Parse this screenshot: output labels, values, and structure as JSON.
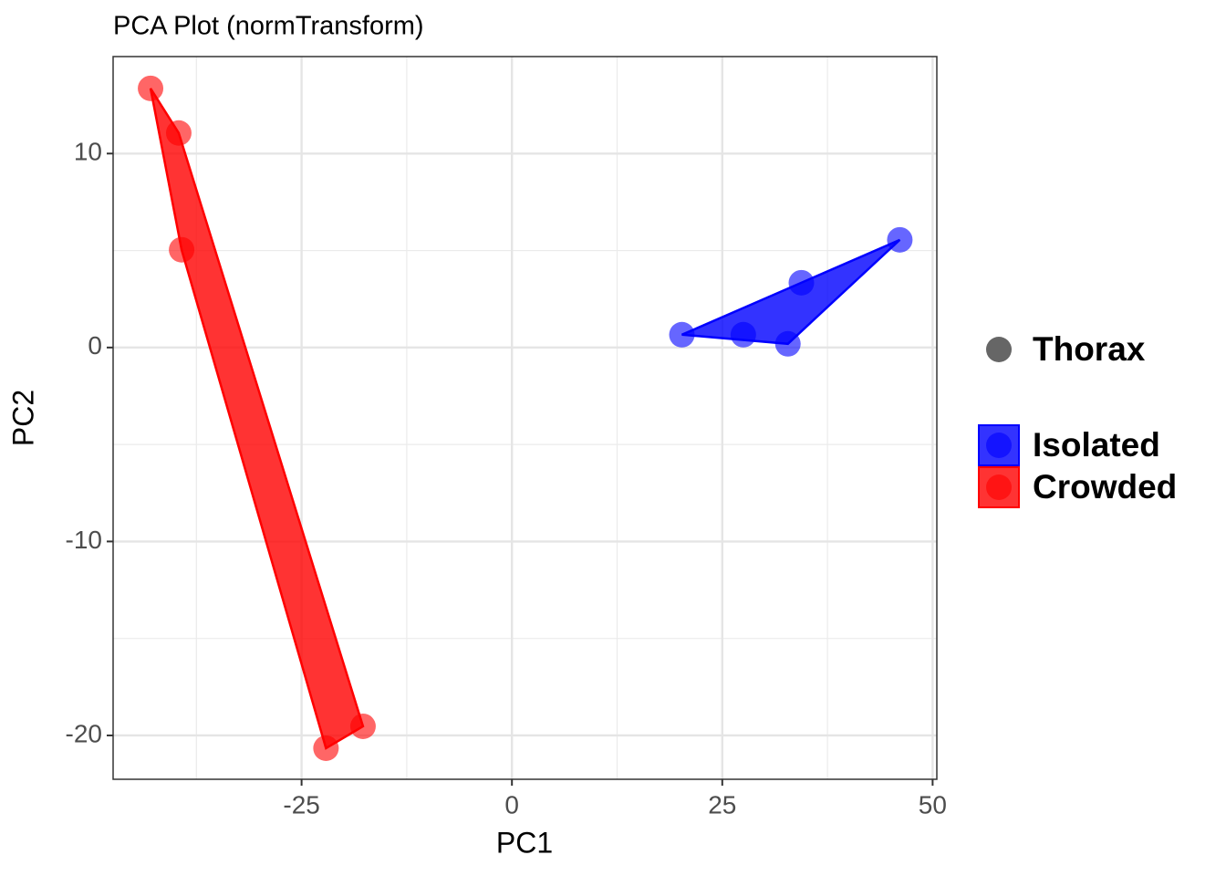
{
  "chart_data": {
    "type": "scatter",
    "title": "PCA Plot (normTransform)",
    "xlabel": "PC1",
    "ylabel": "PC2",
    "xlim": [
      -47.4,
      50.5
    ],
    "ylim": [
      -22.26,
      15.0
    ],
    "xticks": [
      {
        "value": -25,
        "label": "-25"
      },
      0,
      25,
      50
    ],
    "yticks": [
      {
        "value": -20,
        "label": "-20"
      },
      {
        "value": -10,
        "label": "-10"
      },
      0,
      10
    ],
    "xminor": [
      -37.5,
      -12.5,
      12.5,
      37.5
    ],
    "yminor": [
      -15,
      -5,
      5
    ],
    "grid": true,
    "hull": true,
    "legend": "right",
    "shape_legend": "Thorax",
    "series": [
      {
        "name": "Isolated",
        "color": "#0000ff",
        "x": [
          20.2,
          27.5,
          32.8,
          34.4,
          46.1
        ],
        "values": [
          0.66,
          0.66,
          0.19,
          3.34,
          5.55
        ]
      },
      {
        "name": "Crowded",
        "color": "#ff0000",
        "x": [
          -42.95,
          -39.6,
          -39.26,
          -22.1,
          -17.7
        ],
        "values": [
          13.36,
          11.06,
          5.04,
          -20.66,
          -19.53
        ]
      }
    ]
  }
}
